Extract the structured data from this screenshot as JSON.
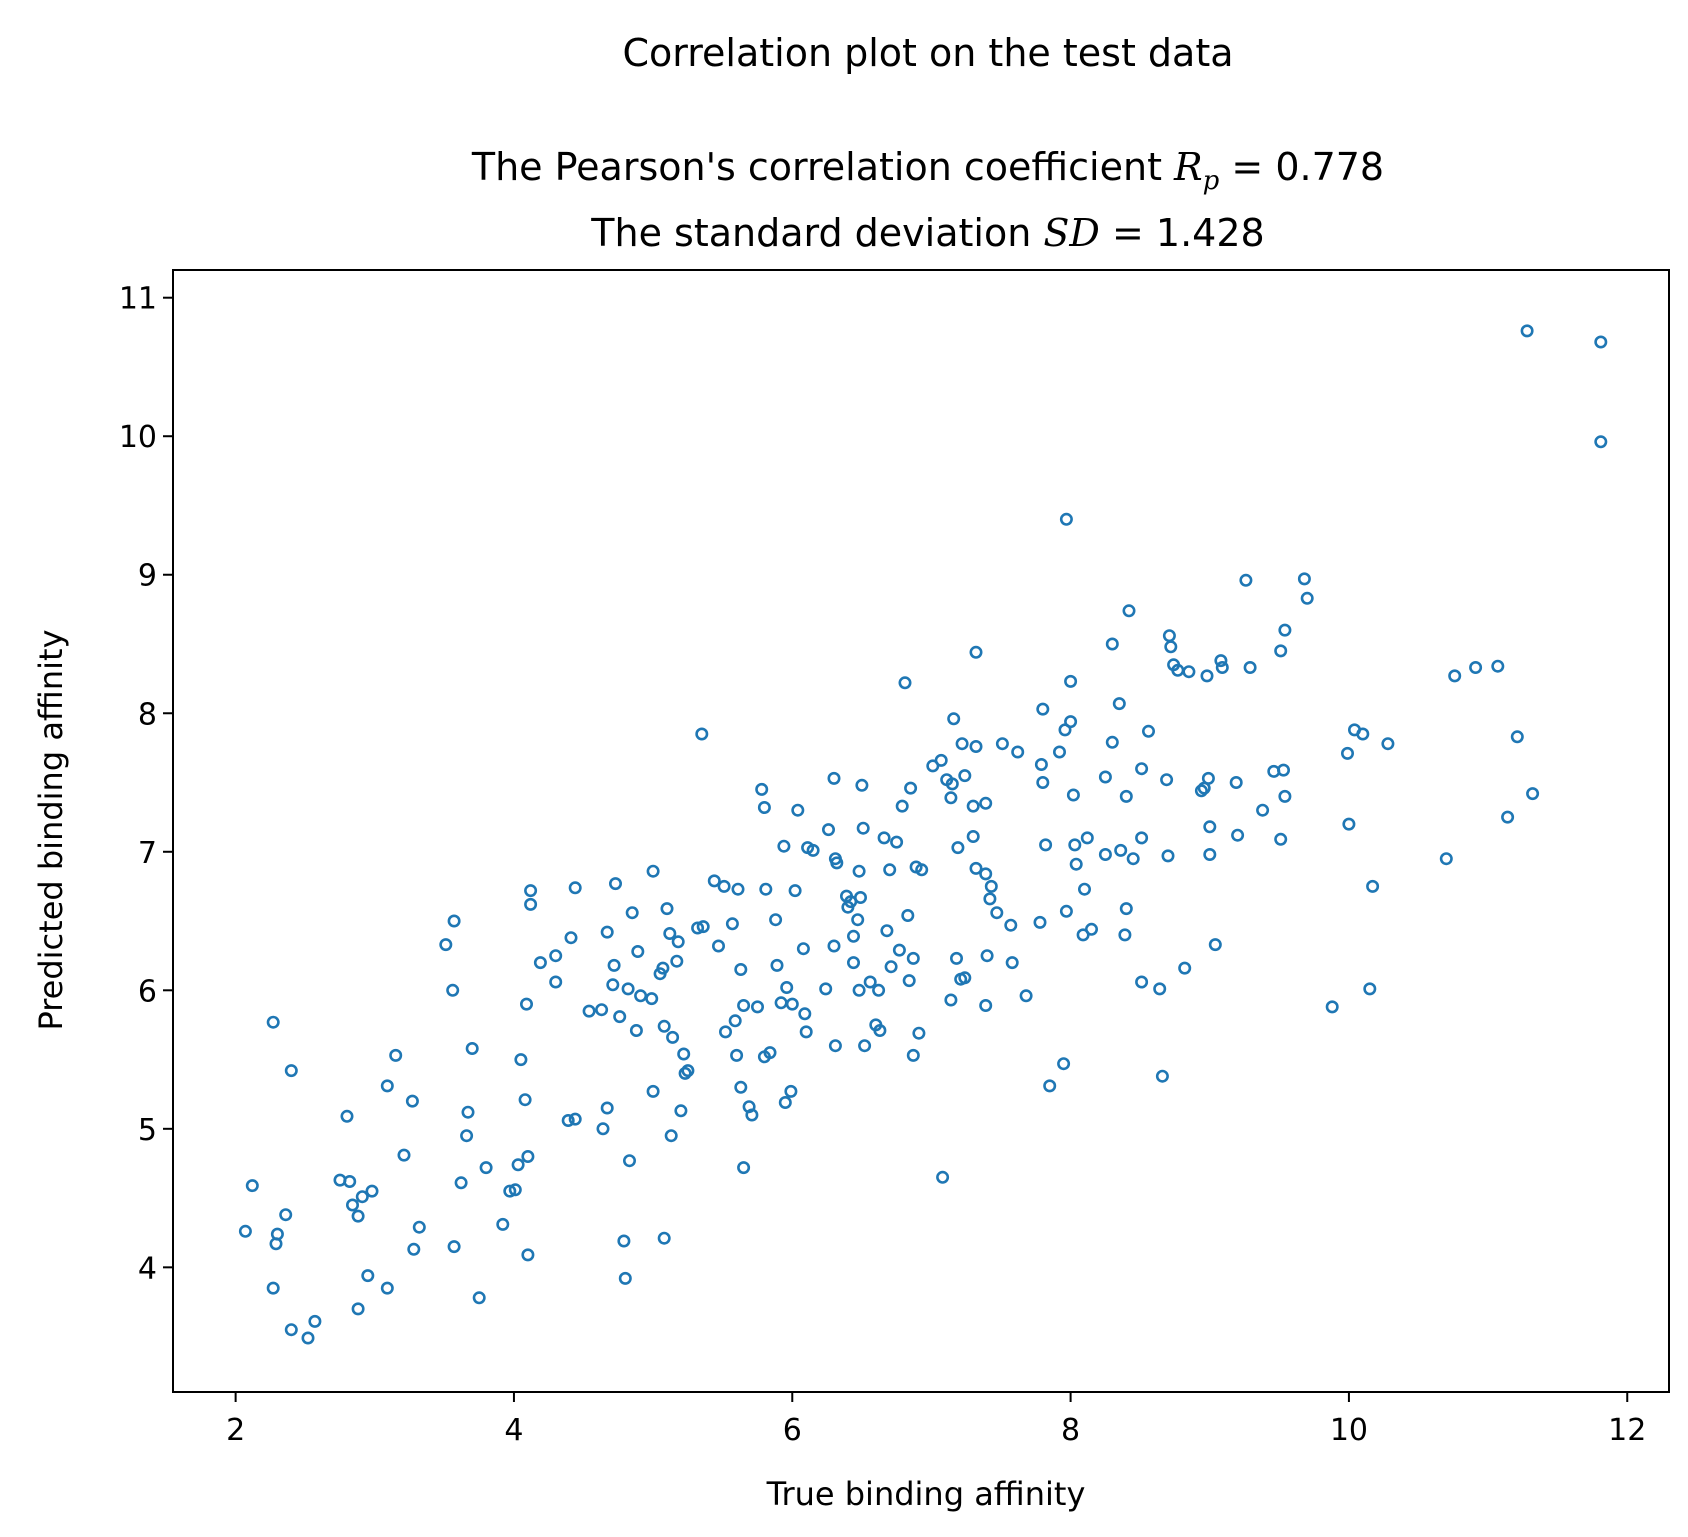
{
  "chart_data": {
    "type": "scatter",
    "title": "Correlation plot on the test data",
    "subtitle_line1_prefix": "The Pearson's correlation coefficient ",
    "subtitle_line1_symbol": "R",
    "subtitle_line1_subscript": "p",
    "subtitle_line1_value": " = 0.778",
    "subtitle_line2_prefix": "The standard deviation ",
    "subtitle_line2_symbol": "SD",
    "subtitle_line2_value": " = 1.428",
    "xlabel": "True binding affinity",
    "ylabel": "Predicted binding affinity",
    "xlim": [
      1.55,
      12.3
    ],
    "ylim": [
      3.1,
      11.2
    ],
    "xticks": [
      2,
      4,
      6,
      8,
      10,
      12
    ],
    "yticks": [
      4,
      5,
      6,
      7,
      8,
      9,
      10,
      11
    ],
    "marker": "hollow-circle",
    "color": "#1f77b4",
    "grid": false,
    "points": [
      [
        2.07,
        4.26
      ],
      [
        2.12,
        4.59
      ],
      [
        2.27,
        5.77
      ],
      [
        2.27,
        3.85
      ],
      [
        2.29,
        4.17
      ],
      [
        2.3,
        4.24
      ],
      [
        2.36,
        4.38
      ],
      [
        2.4,
        3.55
      ],
      [
        2.4,
        5.42
      ],
      [
        2.52,
        3.49
      ],
      [
        2.57,
        3.61
      ],
      [
        2.75,
        4.63
      ],
      [
        2.8,
        5.09
      ],
      [
        2.82,
        4.62
      ],
      [
        2.84,
        4.45
      ],
      [
        2.88,
        4.37
      ],
      [
        2.88,
        3.7
      ],
      [
        2.91,
        4.51
      ],
      [
        2.95,
        3.94
      ],
      [
        2.98,
        4.55
      ],
      [
        3.09,
        5.31
      ],
      [
        3.09,
        3.85
      ],
      [
        3.15,
        5.53
      ],
      [
        3.21,
        4.81
      ],
      [
        3.27,
        5.2
      ],
      [
        3.28,
        4.13
      ],
      [
        3.32,
        4.29
      ],
      [
        3.51,
        6.33
      ],
      [
        3.56,
        6.0
      ],
      [
        3.57,
        4.15
      ],
      [
        3.57,
        6.5
      ],
      [
        3.62,
        4.61
      ],
      [
        3.66,
        4.95
      ],
      [
        3.67,
        5.12
      ],
      [
        3.7,
        5.58
      ],
      [
        3.75,
        3.78
      ],
      [
        3.8,
        4.72
      ],
      [
        3.92,
        4.31
      ],
      [
        3.97,
        4.55
      ],
      [
        4.01,
        4.56
      ],
      [
        4.03,
        4.74
      ],
      [
        4.05,
        5.5
      ],
      [
        4.08,
        5.21
      ],
      [
        4.09,
        5.9
      ],
      [
        4.1,
        4.8
      ],
      [
        4.1,
        4.09
      ],
      [
        4.12,
        6.72
      ],
      [
        4.12,
        6.62
      ],
      [
        4.19,
        6.2
      ],
      [
        4.3,
        6.06
      ],
      [
        4.3,
        6.25
      ],
      [
        4.39,
        5.06
      ],
      [
        4.41,
        6.38
      ],
      [
        4.44,
        6.74
      ],
      [
        4.44,
        5.07
      ],
      [
        4.54,
        5.85
      ],
      [
        4.63,
        5.86
      ],
      [
        4.64,
        5.0
      ],
      [
        4.67,
        5.15
      ],
      [
        4.67,
        6.42
      ],
      [
        4.71,
        6.04
      ],
      [
        4.72,
        6.18
      ],
      [
        4.73,
        6.77
      ],
      [
        4.76,
        5.81
      ],
      [
        4.79,
        4.19
      ],
      [
        4.8,
        3.92
      ],
      [
        4.82,
        6.01
      ],
      [
        4.83,
        4.77
      ],
      [
        4.85,
        6.56
      ],
      [
        4.88,
        5.71
      ],
      [
        4.89,
        6.28
      ],
      [
        4.91,
        5.96
      ],
      [
        4.99,
        5.94
      ],
      [
        5.0,
        5.27
      ],
      [
        5.0,
        6.86
      ],
      [
        5.05,
        6.12
      ],
      [
        5.07,
        6.16
      ],
      [
        5.08,
        4.21
      ],
      [
        5.08,
        5.74
      ],
      [
        5.1,
        6.59
      ],
      [
        5.12,
        6.41
      ],
      [
        5.13,
        4.95
      ],
      [
        5.14,
        5.66
      ],
      [
        5.17,
        6.21
      ],
      [
        5.18,
        6.35
      ],
      [
        5.2,
        5.13
      ],
      [
        5.22,
        5.54
      ],
      [
        5.23,
        5.4
      ],
      [
        5.25,
        5.42
      ],
      [
        5.32,
        6.45
      ],
      [
        5.35,
        7.85
      ],
      [
        5.36,
        6.46
      ],
      [
        5.44,
        6.79
      ],
      [
        5.47,
        6.32
      ],
      [
        5.51,
        6.75
      ],
      [
        5.52,
        5.7
      ],
      [
        5.57,
        6.48
      ],
      [
        5.59,
        5.78
      ],
      [
        5.6,
        5.53
      ],
      [
        5.61,
        6.73
      ],
      [
        5.63,
        5.3
      ],
      [
        5.63,
        6.15
      ],
      [
        5.65,
        4.72
      ],
      [
        5.65,
        5.89
      ],
      [
        5.69,
        5.16
      ],
      [
        5.71,
        5.1
      ],
      [
        5.75,
        5.88
      ],
      [
        5.78,
        7.45
      ],
      [
        5.8,
        5.52
      ],
      [
        5.8,
        7.32
      ],
      [
        5.81,
        6.73
      ],
      [
        5.84,
        5.55
      ],
      [
        5.88,
        6.51
      ],
      [
        5.89,
        6.18
      ],
      [
        5.92,
        5.91
      ],
      [
        5.94,
        7.04
      ],
      [
        5.95,
        5.19
      ],
      [
        5.96,
        6.02
      ],
      [
        5.99,
        5.27
      ],
      [
        6.0,
        5.9
      ],
      [
        6.02,
        6.72
      ],
      [
        6.04,
        7.3
      ],
      [
        6.08,
        6.3
      ],
      [
        6.09,
        5.83
      ],
      [
        6.1,
        5.7
      ],
      [
        6.11,
        7.03
      ],
      [
        6.15,
        7.01
      ],
      [
        6.24,
        6.01
      ],
      [
        6.26,
        7.16
      ],
      [
        6.3,
        7.53
      ],
      [
        6.3,
        6.32
      ],
      [
        6.31,
        5.6
      ],
      [
        6.31,
        6.95
      ],
      [
        6.32,
        6.92
      ],
      [
        6.39,
        6.68
      ],
      [
        6.4,
        6.6
      ],
      [
        6.42,
        6.64
      ],
      [
        6.44,
        6.2
      ],
      [
        6.44,
        6.39
      ],
      [
        6.47,
        6.51
      ],
      [
        6.48,
        6.86
      ],
      [
        6.48,
        6.0
      ],
      [
        6.49,
        6.67
      ],
      [
        6.5,
        7.48
      ],
      [
        6.51,
        7.17
      ],
      [
        6.52,
        5.6
      ],
      [
        6.56,
        6.06
      ],
      [
        6.6,
        5.75
      ],
      [
        6.62,
        6.0
      ],
      [
        6.63,
        5.71
      ],
      [
        6.66,
        7.1
      ],
      [
        6.68,
        6.43
      ],
      [
        6.7,
        6.87
      ],
      [
        6.71,
        6.17
      ],
      [
        6.75,
        7.07
      ],
      [
        6.77,
        6.29
      ],
      [
        6.79,
        7.33
      ],
      [
        6.81,
        8.22
      ],
      [
        6.83,
        6.54
      ],
      [
        6.84,
        6.07
      ],
      [
        6.85,
        7.46
      ],
      [
        6.87,
        6.23
      ],
      [
        6.87,
        5.53
      ],
      [
        6.89,
        6.89
      ],
      [
        6.91,
        5.69
      ],
      [
        6.93,
        6.87
      ],
      [
        7.01,
        7.62
      ],
      [
        7.07,
        7.66
      ],
      [
        7.08,
        4.65
      ],
      [
        7.11,
        7.52
      ],
      [
        7.14,
        7.39
      ],
      [
        7.14,
        5.93
      ],
      [
        7.15,
        7.49
      ],
      [
        7.16,
        7.96
      ],
      [
        7.18,
        6.23
      ],
      [
        7.19,
        7.03
      ],
      [
        7.21,
        6.08
      ],
      [
        7.22,
        7.78
      ],
      [
        7.24,
        6.09
      ],
      [
        7.24,
        7.55
      ],
      [
        7.3,
        7.33
      ],
      [
        7.3,
        7.11
      ],
      [
        7.32,
        6.88
      ],
      [
        7.32,
        7.76
      ],
      [
        7.32,
        8.44
      ],
      [
        7.39,
        5.89
      ],
      [
        7.39,
        7.35
      ],
      [
        7.39,
        6.84
      ],
      [
        7.4,
        6.25
      ],
      [
        7.42,
        6.66
      ],
      [
        7.43,
        6.75
      ],
      [
        7.47,
        6.56
      ],
      [
        7.51,
        7.78
      ],
      [
        7.57,
        6.47
      ],
      [
        7.58,
        6.2
      ],
      [
        7.62,
        7.72
      ],
      [
        7.68,
        5.96
      ],
      [
        7.78,
        6.49
      ],
      [
        7.79,
        7.63
      ],
      [
        7.8,
        7.5
      ],
      [
        7.8,
        8.03
      ],
      [
        7.82,
        7.05
      ],
      [
        7.85,
        5.31
      ],
      [
        7.92,
        7.72
      ],
      [
        7.95,
        5.47
      ],
      [
        7.96,
        7.88
      ],
      [
        7.97,
        9.4
      ],
      [
        7.97,
        6.57
      ],
      [
        8.0,
        8.23
      ],
      [
        8.0,
        7.94
      ],
      [
        8.02,
        7.41
      ],
      [
        8.03,
        7.05
      ],
      [
        8.04,
        6.91
      ],
      [
        8.09,
        6.4
      ],
      [
        8.1,
        6.73
      ],
      [
        8.12,
        7.1
      ],
      [
        8.15,
        6.44
      ],
      [
        8.25,
        7.54
      ],
      [
        8.25,
        6.98
      ],
      [
        8.3,
        7.79
      ],
      [
        8.3,
        8.5
      ],
      [
        8.35,
        8.07
      ],
      [
        8.36,
        7.01
      ],
      [
        8.39,
        6.4
      ],
      [
        8.4,
        6.59
      ],
      [
        8.4,
        7.4
      ],
      [
        8.42,
        8.74
      ],
      [
        8.45,
        6.95
      ],
      [
        8.51,
        6.06
      ],
      [
        8.51,
        7.6
      ],
      [
        8.51,
        7.1
      ],
      [
        8.56,
        7.87
      ],
      [
        8.64,
        6.01
      ],
      [
        8.66,
        5.38
      ],
      [
        8.69,
        7.52
      ],
      [
        8.7,
        6.97
      ],
      [
        8.71,
        8.56
      ],
      [
        8.72,
        8.48
      ],
      [
        8.74,
        8.35
      ],
      [
        8.77,
        8.31
      ],
      [
        8.82,
        6.16
      ],
      [
        8.85,
        8.3
      ],
      [
        8.94,
        7.44
      ],
      [
        8.96,
        7.46
      ],
      [
        8.98,
        8.27
      ],
      [
        8.99,
        7.53
      ],
      [
        9.0,
        7.18
      ],
      [
        9.0,
        6.98
      ],
      [
        9.04,
        6.33
      ],
      [
        9.08,
        8.38
      ],
      [
        9.09,
        8.33
      ],
      [
        9.19,
        7.5
      ],
      [
        9.2,
        7.12
      ],
      [
        9.26,
        8.96
      ],
      [
        9.29,
        8.33
      ],
      [
        9.38,
        7.3
      ],
      [
        9.46,
        7.58
      ],
      [
        9.51,
        7.09
      ],
      [
        9.51,
        8.45
      ],
      [
        9.53,
        7.59
      ],
      [
        9.54,
        8.6
      ],
      [
        9.54,
        7.4
      ],
      [
        9.68,
        8.97
      ],
      [
        9.7,
        8.83
      ],
      [
        9.88,
        5.88
      ],
      [
        9.99,
        7.71
      ],
      [
        10.0,
        7.2
      ],
      [
        10.04,
        7.88
      ],
      [
        10.1,
        7.85
      ],
      [
        10.15,
        6.01
      ],
      [
        10.17,
        6.75
      ],
      [
        10.28,
        7.78
      ],
      [
        10.7,
        6.95
      ],
      [
        10.76,
        8.27
      ],
      [
        10.91,
        8.33
      ],
      [
        11.07,
        8.34
      ],
      [
        11.14,
        7.25
      ],
      [
        11.21,
        7.83
      ],
      [
        11.28,
        10.76
      ],
      [
        11.32,
        7.42
      ],
      [
        11.81,
        10.68
      ],
      [
        11.81,
        9.96
      ]
    ]
  }
}
